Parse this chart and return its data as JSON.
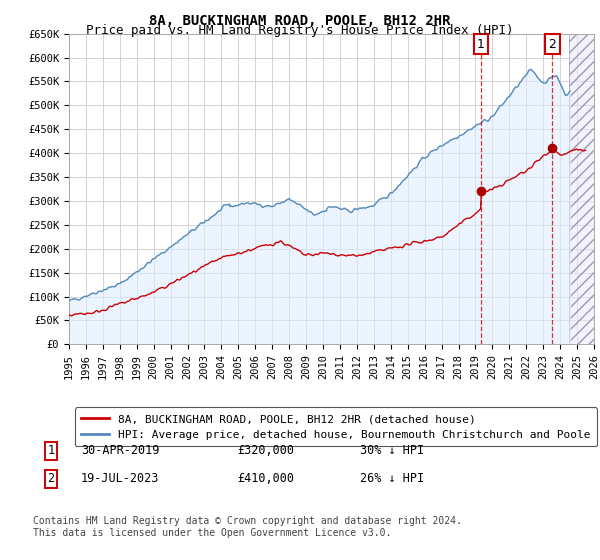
{
  "title": "8A, BUCKINGHAM ROAD, POOLE, BH12 2HR",
  "subtitle": "Price paid vs. HM Land Registry's House Price Index (HPI)",
  "ylabel_ticks": [
    "£0",
    "£50K",
    "£100K",
    "£150K",
    "£200K",
    "£250K",
    "£300K",
    "£350K",
    "£400K",
    "£450K",
    "£500K",
    "£550K",
    "£600K",
    "£650K"
  ],
  "ytick_values": [
    0,
    50000,
    100000,
    150000,
    200000,
    250000,
    300000,
    350000,
    400000,
    450000,
    500000,
    550000,
    600000,
    650000
  ],
  "x_start_year": 1995,
  "x_end_year": 2026,
  "legend1_label": "8A, BUCKINGHAM ROAD, POOLE, BH12 2HR (detached house)",
  "legend2_label": "HPI: Average price, detached house, Bournemouth Christchurch and Poole",
  "marker1_date": "30-APR-2019",
  "marker1_price": "£320,000",
  "marker1_hpi": "30% ↓ HPI",
  "marker1_year": 2019.33,
  "marker1_value": 320000,
  "marker2_date": "19-JUL-2023",
  "marker2_price": "£410,000",
  "marker2_hpi": "26% ↓ HPI",
  "marker2_year": 2023.54,
  "marker2_value": 410000,
  "line_color_red": "#cc0000",
  "line_color_blue": "#5588bb",
  "fill_color_blue": "#ddeeff",
  "background_color": "#ffffff",
  "grid_color": "#cccccc",
  "footer_text": "Contains HM Land Registry data © Crown copyright and database right 2024.\nThis data is licensed under the Open Government Licence v3.0.",
  "title_fontsize": 10,
  "subtitle_fontsize": 9,
  "tick_fontsize": 7.5,
  "legend_fontsize": 8,
  "footer_fontsize": 7
}
